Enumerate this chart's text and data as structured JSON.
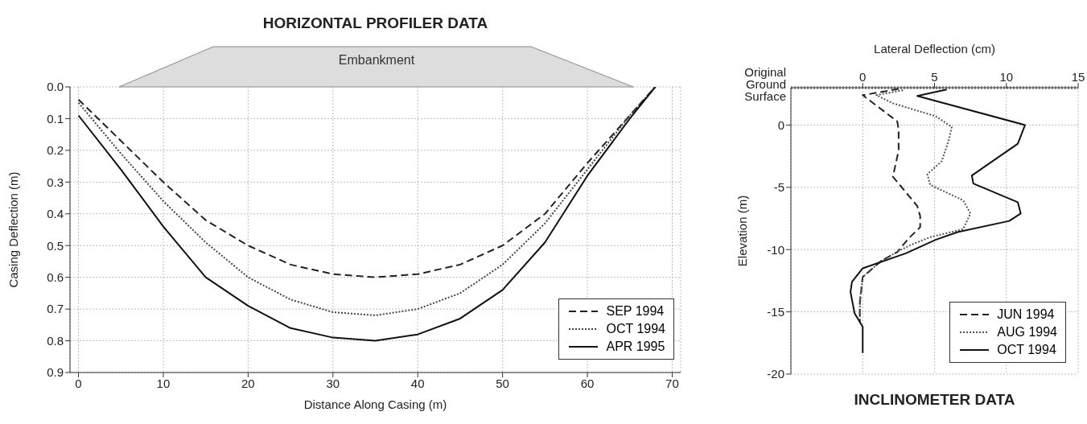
{
  "chart_data": [
    {
      "type": "line",
      "title": "HORIZONTAL PROFILER DATA",
      "xlabel": "Distance Along Casing (m)",
      "ylabel": "Casing Deflection (m)",
      "annotations": [
        "Embankment"
      ],
      "xlim": [
        -1,
        71
      ],
      "xticks": [
        0,
        10,
        20,
        30,
        40,
        50,
        60,
        70
      ],
      "ylim": [
        0.9,
        0
      ],
      "yticks": [
        {
          "value": 0,
          "label": "0.0"
        },
        0.1,
        0.2,
        0.3,
        0.4,
        0.5,
        0.6,
        0.7,
        0.8,
        0.9
      ],
      "grid": true,
      "legend": "bottom right",
      "x": [
        0,
        5,
        10,
        15,
        20,
        25,
        30,
        35,
        40,
        45,
        50,
        55,
        60,
        65,
        68
      ],
      "series": [
        {
          "name": "SEP 1994",
          "color": "#222222",
          "line_style": "dashed",
          "values": [
            0.04,
            0.17,
            0.3,
            0.42,
            0.5,
            0.56,
            0.59,
            0.6,
            0.59,
            0.56,
            0.5,
            0.4,
            0.24,
            0.09,
            0.0
          ]
        },
        {
          "name": "OCT 1994",
          "color": "#444444",
          "line_style": "dotted",
          "values": [
            0.05,
            0.21,
            0.36,
            0.49,
            0.6,
            0.67,
            0.71,
            0.72,
            0.7,
            0.65,
            0.56,
            0.43,
            0.26,
            0.09,
            0.0
          ]
        },
        {
          "name": "APR 1995",
          "color": "#111111",
          "line_style": "solid",
          "values": [
            0.09,
            0.26,
            0.44,
            0.6,
            0.69,
            0.76,
            0.79,
            0.8,
            0.78,
            0.73,
            0.64,
            0.49,
            0.28,
            0.1,
            0.0
          ]
        }
      ]
    },
    {
      "type": "line",
      "title": "INCLINOMETER DATA",
      "xlabel": "Lateral Deflection (cm)",
      "ylabel": "Elevation (m)",
      "xlim": [
        -5,
        15
      ],
      "xticks": [
        0,
        5,
        10,
        15
      ],
      "ylim": [
        -20,
        3
      ],
      "yticks": [
        0,
        -5,
        -10,
        -15,
        -20
      ],
      "grid": true,
      "legend": "bottom right",
      "ref_lines": [
        {
          "axis": "y",
          "value": 3,
          "label": "Original Ground Surface",
          "color": "#999999",
          "line_style": "dotted"
        }
      ],
      "series": [
        {
          "name": "JUN 1994",
          "color": "#222222",
          "line_style": "dashed",
          "x": [
            2.5,
            0,
            2.4,
            2.5,
            2.5,
            2.1,
            3.8,
            4.0,
            4.0,
            3.2,
            2.4,
            1.3,
            0,
            -0.2,
            -0.2
          ],
          "values": [
            2.9,
            2.4,
            0.3,
            -0.35,
            -2.05,
            -4.15,
            -6.5,
            -7.3,
            -8.2,
            -9.1,
            -10.2,
            -10.9,
            -12.2,
            -14.3,
            -15.8
          ]
        },
        {
          "name": "AUG 1994",
          "color": "#555555",
          "line_style": "dotted",
          "x": [
            2.8,
            0.95,
            2.1,
            5.1,
            6.2,
            6.0,
            5.5,
            4.5,
            4.7,
            7.0,
            7.5,
            7.0,
            4.7,
            3.4,
            2.6,
            1.3,
            0,
            -0.2,
            -0.2
          ],
          "values": [
            2.8,
            2.4,
            1.75,
            0.7,
            -0.15,
            -1.2,
            -2.9,
            -3.95,
            -4.8,
            -6.05,
            -7.1,
            -8.35,
            -9.0,
            -9.6,
            -10.05,
            -10.9,
            -12.2,
            -14.1,
            -15.8
          ]
        },
        {
          "name": "OCT 1994",
          "color": "#111111",
          "line_style": "solid",
          "x": [
            5.85,
            3.8,
            11.3,
            10.8,
            7.6,
            7.7,
            10.8,
            11.0,
            10.2,
            6.6,
            5.1,
            3.0,
            0,
            -0.75,
            -0.85,
            -0.57,
            0,
            0
          ],
          "values": [
            2.85,
            2.34,
            0,
            -1.5,
            -4.05,
            -4.7,
            -6.2,
            -7.1,
            -7.7,
            -8.6,
            -9.2,
            -10.3,
            -11.5,
            -12.6,
            -13.4,
            -15.1,
            -16.2,
            -18.3
          ]
        }
      ]
    }
  ]
}
